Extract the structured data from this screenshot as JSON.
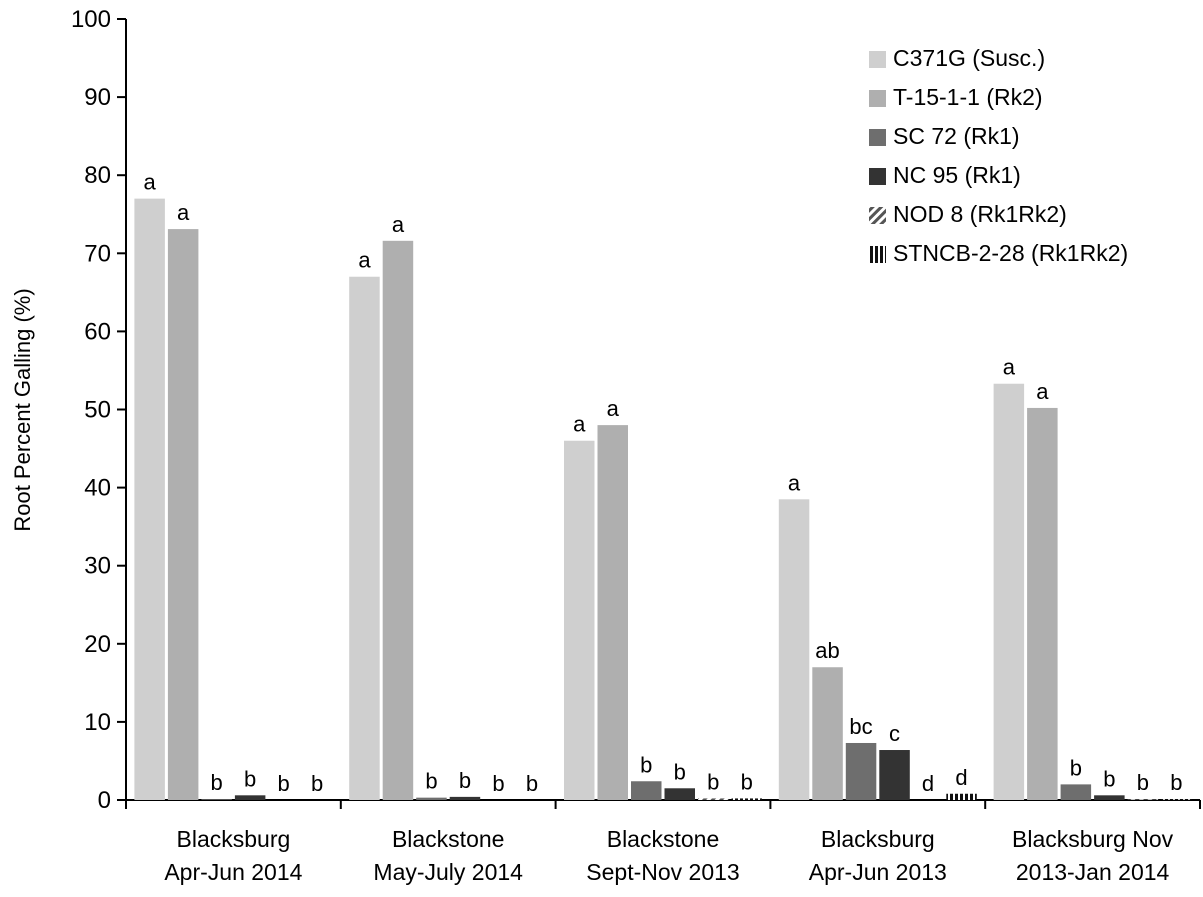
{
  "chart_data": {
    "type": "bar",
    "title": "",
    "xlabel": "",
    "ylabel": "Root Percent Galling (%)",
    "ylim": [
      0,
      100
    ],
    "yticks": [
      0,
      10,
      20,
      30,
      40,
      50,
      60,
      70,
      80,
      90,
      100
    ],
    "grid": false,
    "legend_position": "top-right",
    "categories": [
      [
        "Blacksburg",
        "Apr-Jun 2014"
      ],
      [
        "Blackstone",
        "May-July 2014"
      ],
      [
        "Blackstone",
        "Sept-Nov 2013"
      ],
      [
        "Blacksburg",
        "Apr-Jun 2013"
      ],
      [
        "Blacksburg Nov",
        "2013-Jan 2014"
      ]
    ],
    "series": [
      {
        "name": "C371G (Susc.)",
        "color": "#cfcfcf",
        "pattern": "solid",
        "values": [
          77.0,
          67.0,
          46.0,
          38.5,
          53.3
        ],
        "labels": [
          "a",
          "a",
          "a",
          "a",
          "a"
        ]
      },
      {
        "name": "T-15-1-1 (Rk2)",
        "color": "#afafaf",
        "pattern": "solid",
        "values": [
          73.1,
          71.6,
          48.0,
          17.0,
          50.2
        ],
        "labels": [
          "a",
          "a",
          "a",
          "ab",
          "a"
        ]
      },
      {
        "name": "SC 72 (Rk1)",
        "color": "#6e6e6e",
        "pattern": "solid",
        "values": [
          0.1,
          0.3,
          2.4,
          7.3,
          2.0
        ],
        "labels": [
          "b",
          "b",
          "b",
          "bc",
          "b"
        ]
      },
      {
        "name": "NC 95 (Rk1)",
        "color": "#333333",
        "pattern": "solid",
        "values": [
          0.6,
          0.4,
          1.5,
          6.4,
          0.6
        ],
        "labels": [
          "b",
          "b",
          "b",
          "c",
          "b"
        ]
      },
      {
        "name": "NOD 8 (Rk1Rk2)",
        "color": "#555555",
        "pattern": "diagonal",
        "values": [
          0.0,
          0.0,
          0.2,
          0.0,
          0.1
        ],
        "labels": [
          "b",
          "b",
          "b",
          "d",
          "b"
        ]
      },
      {
        "name": "STNCB-2-28 (Rk1Rk2)",
        "color": "#111111",
        "pattern": "vertical",
        "values": [
          0.0,
          0.0,
          0.2,
          0.8,
          0.1
        ],
        "labels": [
          "b",
          "b",
          "b",
          "d",
          "b"
        ]
      }
    ]
  }
}
